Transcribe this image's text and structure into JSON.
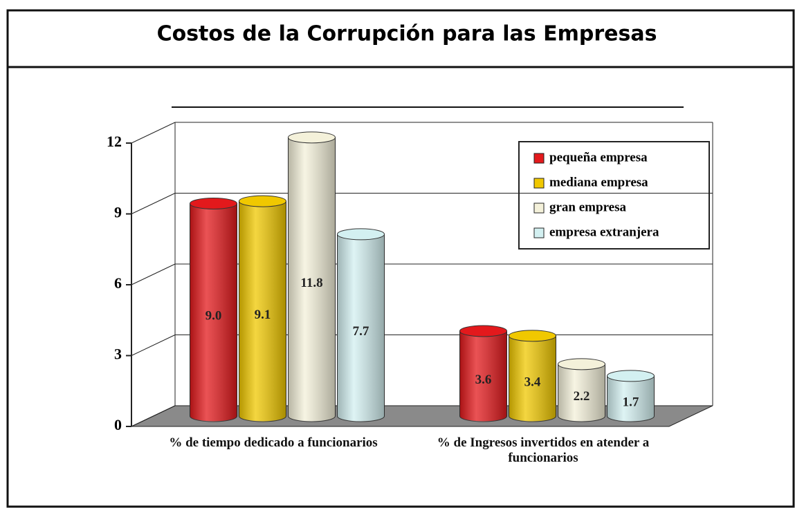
{
  "chart_data": {
    "type": "bar3d",
    "title": "Costos de la Corrupción  para las Empresas",
    "categories": [
      "% de tiempo dedicado a funcionarios",
      "% de Ingresos invertidos en atender a funcionarios"
    ],
    "series": [
      {
        "name": "pequeña empresa",
        "color": "#e3191c",
        "values": [
          9.0,
          3.6
        ],
        "value_labels": [
          "9.0",
          "3.6"
        ]
      },
      {
        "name": "mediana empresa",
        "color": "#f0c800",
        "values": [
          9.1,
          3.4
        ],
        "value_labels": [
          "9.1",
          "3.4"
        ]
      },
      {
        "name": "gran empresa",
        "color": "#f4f1da",
        "values": [
          11.8,
          2.2
        ],
        "value_labels": [
          "11.8",
          "2.2"
        ]
      },
      {
        "name": "empresa extranjera",
        "color": "#d3f0f1",
        "values": [
          7.7,
          1.7
        ],
        "value_labels": [
          "7.7",
          "1.7"
        ]
      }
    ],
    "ylim": [
      0,
      12
    ],
    "yticks": [
      0,
      3,
      6,
      9,
      12
    ],
    "grid": true,
    "legend": "upper right"
  }
}
